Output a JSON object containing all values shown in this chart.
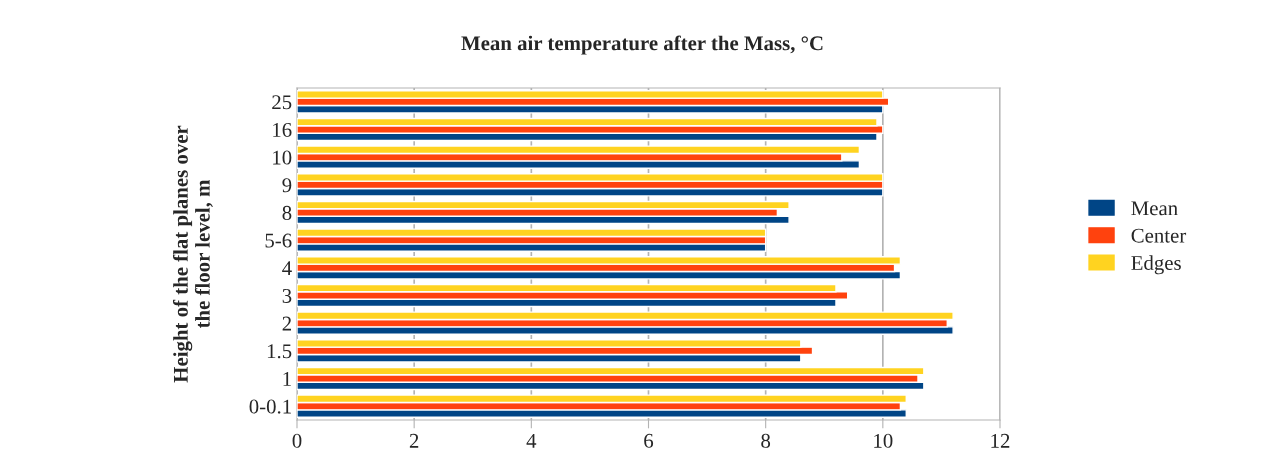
{
  "chart_data": {
    "type": "bar",
    "orientation": "horizontal",
    "title": "Mean air temperature after the Mass, °C",
    "ylabel": "Height of the flat planes over\nthe floor level, m",
    "categories": [
      "25",
      "16",
      "10",
      "9",
      "8",
      "5-6",
      "4",
      "3",
      "2",
      "1.5",
      "1",
      "0-0.1"
    ],
    "series": [
      {
        "name": "Mean",
        "color": "#004586",
        "values": [
          10.0,
          9.9,
          9.6,
          10.0,
          8.4,
          8.0,
          10.3,
          9.2,
          11.2,
          8.6,
          10.7,
          10.4
        ]
      },
      {
        "name": "Center",
        "color": "#ff420e",
        "values": [
          10.1,
          10.0,
          9.3,
          10.0,
          8.2,
          8.0,
          10.2,
          9.4,
          11.1,
          8.8,
          10.6,
          10.3
        ]
      },
      {
        "name": "Edges",
        "color": "#ffd320",
        "values": [
          10.0,
          9.9,
          9.6,
          10.0,
          8.4,
          8.0,
          10.3,
          9.2,
          11.2,
          8.6,
          10.7,
          10.4
        ]
      }
    ],
    "xlim": [
      0,
      12
    ],
    "xticks": [
      0,
      2,
      4,
      6,
      8,
      10,
      12
    ],
    "grid": "x",
    "legend": "right"
  }
}
